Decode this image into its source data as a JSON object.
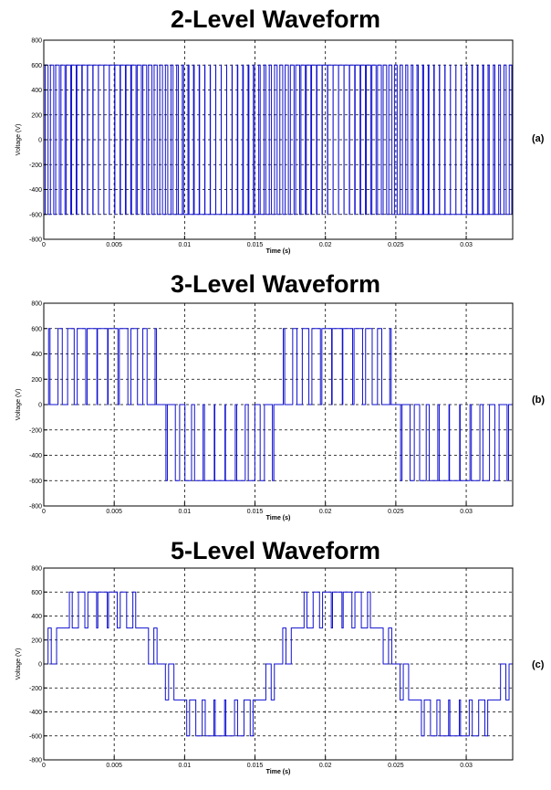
{
  "panels": [
    {
      "title": "2-Level Waveform",
      "tag": "(a)",
      "xlabel": "Time (s)",
      "ylabel": "Voltage (V)"
    },
    {
      "title": "3-Level Waveform",
      "tag": "(b)",
      "xlabel": "Time (s)",
      "ylabel": "Voltage (V)"
    },
    {
      "title": "5-Level Waveform",
      "tag": "(c)",
      "xlabel": "Time (s)",
      "ylabel": "Voltage (V)"
    }
  ],
  "chart_data": [
    {
      "type": "line",
      "title": "2-Level Waveform",
      "xlabel": "Time (s)",
      "ylabel": "Voltage (V)",
      "xlim": [
        0,
        0.0333
      ],
      "ylim": [
        -800,
        800
      ],
      "xticks": [
        "0",
        "0.005",
        "0.01",
        "0.015",
        "0.02",
        "0.025",
        "0.03"
      ],
      "yticks": [
        "800",
        "600",
        "400",
        "200",
        "0",
        "-200",
        "-400",
        "-600",
        "-800"
      ],
      "grid": true,
      "line_color": "#1010d0",
      "waveform": "two-level PWM switching between +600 V and -600 V",
      "levels": [
        -600,
        600
      ],
      "fundamental_hz": 60,
      "switching_pulses_per_cycle": 43
    },
    {
      "type": "line",
      "title": "3-Level Waveform",
      "xlabel": "Time (s)",
      "ylabel": "Voltage (V)",
      "xlim": [
        0,
        0.0333
      ],
      "ylim": [
        -800,
        800
      ],
      "xticks": [
        "0",
        "0.005",
        "0.01",
        "0.015",
        "0.02",
        "0.025",
        "0.03"
      ],
      "yticks": [
        "800",
        "600",
        "400",
        "200",
        "0",
        "-200",
        "-400",
        "-600",
        "-800"
      ],
      "grid": true,
      "line_color": "#1010d0",
      "waveform": "three-level PWM: 0/+600 V in positive half-cycle, 0/-600 V in negative half-cycle",
      "levels": [
        -600,
        0,
        600
      ],
      "fundamental_hz": 60,
      "switching_pulses_per_cycle": 22
    },
    {
      "type": "line",
      "title": "5-Level Waveform",
      "xlabel": "Time (s)",
      "ylabel": "Voltage (V)",
      "xlim": [
        0,
        0.0333
      ],
      "ylim": [
        -800,
        800
      ],
      "xticks": [
        "0",
        "0.005",
        "0.01",
        "0.015",
        "0.02",
        "0.025",
        "0.03"
      ],
      "yticks": [
        "800",
        "600",
        "400",
        "200",
        "0",
        "-200",
        "-400",
        "-600",
        "-800"
      ],
      "grid": true,
      "line_color": "#1010d0",
      "waveform": "five-level staircase PWM using levels -600, -300, 0, 300, 600 V",
      "levels": [
        -600,
        -300,
        0,
        300,
        600
      ],
      "fundamental_hz": 60,
      "switching_pulses_per_cycle": 22
    }
  ]
}
